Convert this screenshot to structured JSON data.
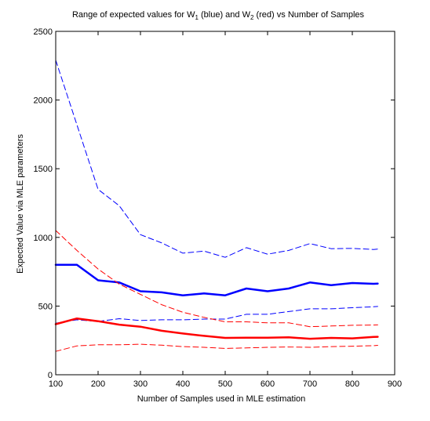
{
  "chart_data": {
    "type": "line",
    "title": {
      "p1": "Range of expected values for W",
      "s1": "1",
      "p2": " (blue) and W",
      "s2": "2",
      "p3": " (red) vs Number of Samples"
    },
    "xlabel": "Number of Samples used in MLE estimation",
    "ylabel": "Expected Value via MLE parameters",
    "xlim": [
      100,
      900
    ],
    "ylim": [
      0,
      2500
    ],
    "xticks": [
      100,
      200,
      300,
      400,
      500,
      600,
      700,
      800,
      900
    ],
    "yticks": [
      0,
      500,
      1000,
      1500,
      2000,
      2500
    ],
    "grid": false,
    "legend": "none",
    "x": [
      100,
      150,
      200,
      250,
      300,
      350,
      400,
      450,
      500,
      550,
      600,
      650,
      700,
      750,
      800,
      850,
      860
    ],
    "series": [
      {
        "color": "#0000ff",
        "style": "dashed",
        "width": 1,
        "values": [
          2290,
          1820,
          1350,
          1230,
          1020,
          960,
          885,
          900,
          855,
          925,
          878,
          905,
          955,
          918,
          920,
          912,
          915
        ]
      },
      {
        "color": "#0000ff",
        "style": "solid",
        "width": 2.5,
        "values": [
          800,
          800,
          688,
          672,
          608,
          600,
          578,
          592,
          578,
          628,
          608,
          628,
          672,
          652,
          668,
          662,
          664
        ]
      },
      {
        "color": "#0000ff",
        "style": "dashed",
        "width": 1,
        "values": [
          375,
          400,
          388,
          408,
          395,
          400,
          400,
          405,
          405,
          440,
          440,
          460,
          480,
          480,
          488,
          495,
          497
        ]
      },
      {
        "color": "#ff0000",
        "style": "dashed",
        "width": 1,
        "values": [
          1050,
          905,
          770,
          660,
          585,
          510,
          455,
          418,
          385,
          385,
          378,
          378,
          350,
          355,
          360,
          362,
          363
        ]
      },
      {
        "color": "#ff0000",
        "style": "solid",
        "width": 2.5,
        "values": [
          368,
          410,
          390,
          365,
          350,
          320,
          300,
          283,
          268,
          270,
          270,
          272,
          262,
          268,
          265,
          275,
          276
        ]
      },
      {
        "color": "#ff0000",
        "style": "dashed",
        "width": 1,
        "values": [
          170,
          210,
          218,
          218,
          222,
          215,
          205,
          200,
          192,
          195,
          200,
          202,
          200,
          205,
          208,
          212,
          214
        ]
      }
    ]
  }
}
